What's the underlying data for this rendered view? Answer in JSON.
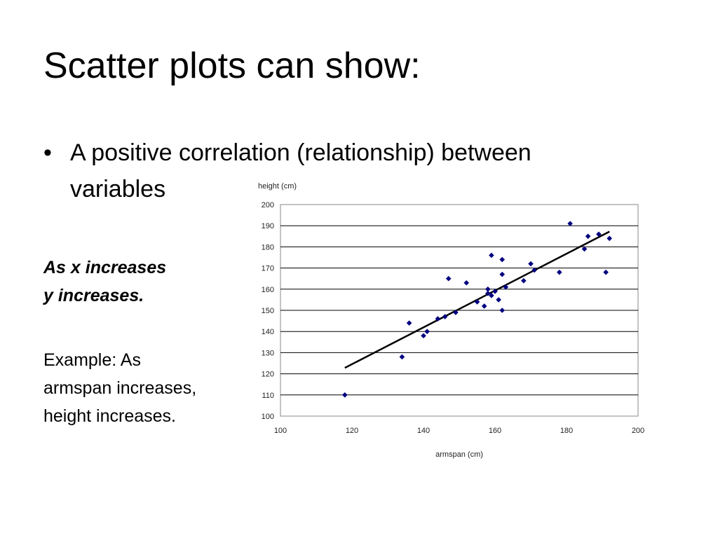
{
  "slide": {
    "title": "Scatter plots can show:",
    "bullet_marker": "•",
    "bullet_line1": "A positive correlation (relationship) between",
    "bullet_line2": "variables",
    "emphasis_line1": "As x increases",
    "emphasis_line2": "y increases.",
    "example_line1": "Example: As",
    "example_line2": "armspan increases,",
    "example_line3": "height increases."
  },
  "chart_data": {
    "type": "scatter",
    "title": "",
    "xlabel": "armspan (cm)",
    "ylabel": "height (cm)",
    "xlim": [
      100,
      200
    ],
    "ylim": [
      100,
      200
    ],
    "x_ticks": [
      100,
      120,
      140,
      160,
      180,
      200
    ],
    "y_ticks": [
      100,
      110,
      120,
      130,
      140,
      150,
      160,
      170,
      180,
      190,
      200
    ],
    "grid": "horizontal",
    "marker_color": "#000080",
    "points": [
      {
        "x": 118,
        "y": 110
      },
      {
        "x": 134,
        "y": 128
      },
      {
        "x": 136,
        "y": 144
      },
      {
        "x": 140,
        "y": 138
      },
      {
        "x": 141,
        "y": 140
      },
      {
        "x": 144,
        "y": 146
      },
      {
        "x": 146,
        "y": 147
      },
      {
        "x": 147,
        "y": 165
      },
      {
        "x": 149,
        "y": 149
      },
      {
        "x": 152,
        "y": 163
      },
      {
        "x": 155,
        "y": 154
      },
      {
        "x": 157,
        "y": 152
      },
      {
        "x": 158,
        "y": 160
      },
      {
        "x": 158,
        "y": 158
      },
      {
        "x": 159,
        "y": 176
      },
      {
        "x": 159,
        "y": 157
      },
      {
        "x": 160,
        "y": 159
      },
      {
        "x": 161,
        "y": 155
      },
      {
        "x": 162,
        "y": 174
      },
      {
        "x": 162,
        "y": 167
      },
      {
        "x": 162,
        "y": 150
      },
      {
        "x": 163,
        "y": 161
      },
      {
        "x": 168,
        "y": 164
      },
      {
        "x": 170,
        "y": 172
      },
      {
        "x": 171,
        "y": 169
      },
      {
        "x": 178,
        "y": 168
      },
      {
        "x": 181,
        "y": 191
      },
      {
        "x": 185,
        "y": 179
      },
      {
        "x": 186,
        "y": 185
      },
      {
        "x": 189,
        "y": 186
      },
      {
        "x": 191,
        "y": 168
      },
      {
        "x": 192,
        "y": 184
      }
    ],
    "trendline": {
      "x": [
        118,
        192
      ],
      "y": [
        122.8,
        187.2
      ],
      "color": "#000000"
    }
  }
}
